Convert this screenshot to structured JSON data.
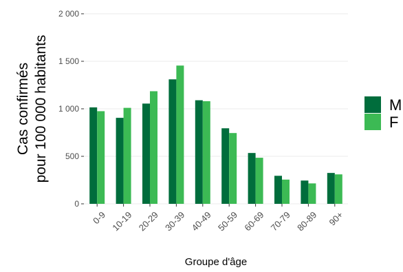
{
  "chart_data": {
    "type": "bar",
    "title": "",
    "xlabel": "Groupe d'âge",
    "ylabel_lines": [
      "Cas confirmés",
      "pour 100 000 habitants"
    ],
    "categories": [
      "0-9",
      "10-19",
      "20-29",
      "30-39",
      "40-49",
      "50-59",
      "60-69",
      "70-79",
      "80-89",
      "90+"
    ],
    "series": [
      {
        "name": "M",
        "color": "#006d3c",
        "values": [
          1015,
          905,
          1055,
          1310,
          1090,
          795,
          535,
          295,
          245,
          325
        ]
      },
      {
        "name": "F",
        "color": "#3cba54",
        "values": [
          975,
          1010,
          1185,
          1455,
          1080,
          745,
          485,
          255,
          215,
          310
        ]
      }
    ],
    "y_ticks": [
      {
        "value": 0,
        "label": "0"
      },
      {
        "value": 500,
        "label": "500"
      },
      {
        "value": 1000,
        "label": "1 000"
      },
      {
        "value": 1500,
        "label": "1 500"
      },
      {
        "value": 2000,
        "label": "2 000"
      }
    ],
    "ylim": [
      0,
      2000
    ],
    "grid": true,
    "grid_color": "#ebebeb",
    "legend_position": "right"
  }
}
